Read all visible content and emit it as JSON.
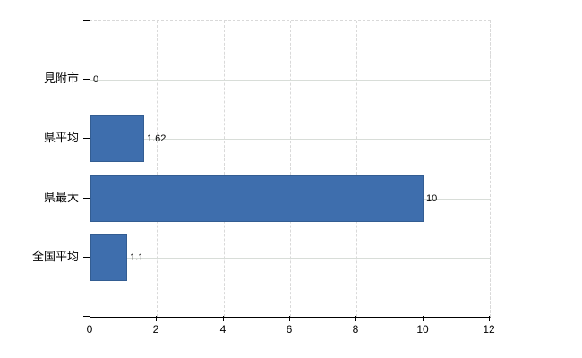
{
  "chart_data": {
    "type": "bar",
    "orientation": "horizontal",
    "title": "",
    "categories": [
      "見附市",
      "県平均",
      "県最大",
      "全国平均"
    ],
    "values": [
      0,
      1.62,
      10,
      1.1
    ],
    "value_labels": [
      "0",
      "1.62",
      "10",
      "1.1"
    ],
    "xlim": [
      0,
      12
    ],
    "x_tick_values": [
      0,
      2,
      4,
      6,
      8,
      10,
      12
    ],
    "x_tick_labels": [
      "0",
      "2",
      "4",
      "6",
      "8",
      "10",
      "12"
    ],
    "grid": "on",
    "legend": "none",
    "colors": {
      "bar": "#3e6ead",
      "bar_border": "#335d92",
      "axis": "#000000",
      "grid_dashed": "#d9d9d9",
      "grid_solid": "#d8ddd8",
      "background": "#ffffff"
    }
  }
}
